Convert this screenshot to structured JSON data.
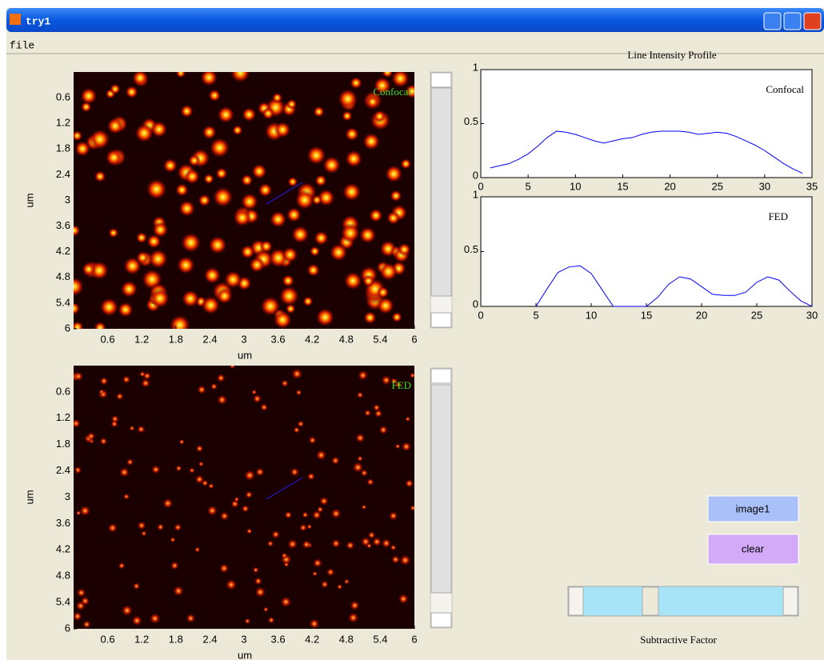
{
  "window": {
    "title": "try1",
    "menu": [
      "file"
    ]
  },
  "images": [
    {
      "label": "Confocal",
      "xlabel": "um",
      "ylabel": "um",
      "xlim": [
        0,
        6
      ],
      "ylim": [
        0,
        6
      ],
      "xticks": [
        0.6,
        1.2,
        1.8,
        2.4,
        3,
        3.6,
        4.2,
        4.8,
        5.4,
        6
      ],
      "yticks": [
        0.6,
        1.2,
        1.8,
        2.4,
        3,
        3.6,
        4.2,
        4.8,
        5.4,
        6
      ]
    },
    {
      "label": "FED",
      "xlabel": "um",
      "ylabel": "um",
      "xlim": [
        0,
        6
      ],
      "ylim": [
        0,
        6
      ],
      "xticks": [
        0.6,
        1.2,
        1.8,
        2.4,
        3,
        3.6,
        4.2,
        4.8,
        5.4,
        6
      ],
      "yticks": [
        0.6,
        1.2,
        1.8,
        2.4,
        3,
        3.6,
        4.2,
        4.8,
        5.4,
        6
      ]
    }
  ],
  "chart_data": [
    {
      "type": "line",
      "title": "Line Intensity Profile",
      "annotation": "Confocal",
      "color": "#0000ff",
      "x": [
        1,
        2,
        3,
        4,
        5,
        6,
        7,
        8,
        9,
        10,
        11,
        12,
        13,
        14,
        15,
        16,
        17,
        18,
        19,
        20,
        21,
        22,
        23,
        24,
        25,
        26,
        27,
        28,
        29,
        30,
        31,
        32,
        33,
        34
      ],
      "values": [
        0.09,
        0.11,
        0.13,
        0.17,
        0.22,
        0.29,
        0.37,
        0.43,
        0.42,
        0.4,
        0.37,
        0.34,
        0.32,
        0.34,
        0.36,
        0.37,
        0.4,
        0.42,
        0.43,
        0.43,
        0.43,
        0.42,
        0.4,
        0.41,
        0.42,
        0.41,
        0.38,
        0.34,
        0.3,
        0.25,
        0.19,
        0.13,
        0.08,
        0.04
      ],
      "xlim": [
        0,
        35
      ],
      "ylim": [
        0,
        1
      ],
      "xticks": [
        0,
        5,
        10,
        15,
        20,
        25,
        30,
        35
      ],
      "yticks": [
        0,
        0.5,
        1
      ]
    },
    {
      "type": "line",
      "annotation": "FED",
      "color": "#0000ff",
      "x": [
        5,
        6,
        7,
        8,
        9,
        10,
        11,
        12,
        13,
        14,
        15,
        16,
        17,
        18,
        19,
        20,
        21,
        22,
        23,
        24,
        25,
        26,
        27,
        28,
        29,
        30
      ],
      "values": [
        0,
        0.16,
        0.31,
        0.36,
        0.37,
        0.3,
        0.15,
        0,
        0,
        0,
        0,
        0.08,
        0.2,
        0.27,
        0.25,
        0.18,
        0.11,
        0.1,
        0.1,
        0.13,
        0.22,
        0.27,
        0.24,
        0.14,
        0.05,
        0
      ],
      "xlim": [
        0,
        30
      ],
      "ylim": [
        0,
        1
      ],
      "xticks": [
        0,
        5,
        10,
        15,
        20,
        25,
        30
      ],
      "yticks": [
        0,
        0.5,
        1
      ]
    }
  ],
  "buttons": [
    "image1",
    "clear"
  ],
  "slider": {
    "label": "Subtractive Factor"
  }
}
